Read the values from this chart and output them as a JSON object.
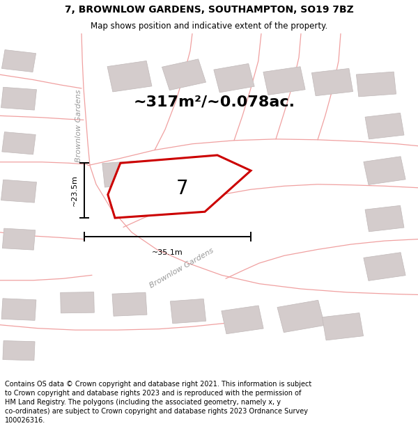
{
  "title": "7, BROWNLOW GARDENS, SOUTHAMPTON, SO19 7BZ",
  "subtitle": "Map shows position and indicative extent of the property.",
  "area_text": "~317m²/~0.078ac.",
  "number_label": "7",
  "width_label": "~35.1m",
  "height_label": "~23.5m",
  "street_label_1": "Brownlow Gardens",
  "street_label_2": "Brownlow Gardens",
  "map_bg": "#f2eeeb",
  "plot_edge_color": "#cc0000",
  "road_color": "#f0a0a0",
  "building_color": "#d4cccc",
  "building_edge": "#c0b8b8",
  "footer_text_line1": "Contains OS data © Crown copyright and database right 2021. This information is subject",
  "footer_text_line2": "to Crown copyright and database rights 2023 and is reproduced with the permission of",
  "footer_text_line3": "HM Land Registry. The polygons (including the associated geometry, namely x, y",
  "footer_text_line4": "co-ordinates) are subject to Crown copyright and database rights 2023 Ordnance Survey",
  "footer_text_line5": "100026316.",
  "title_fontsize": 10,
  "subtitle_fontsize": 8.5,
  "area_fontsize": 16,
  "label_fontsize": 8,
  "footer_fontsize": 7,
  "number_fontsize": 20,
  "dim_fontsize": 8
}
